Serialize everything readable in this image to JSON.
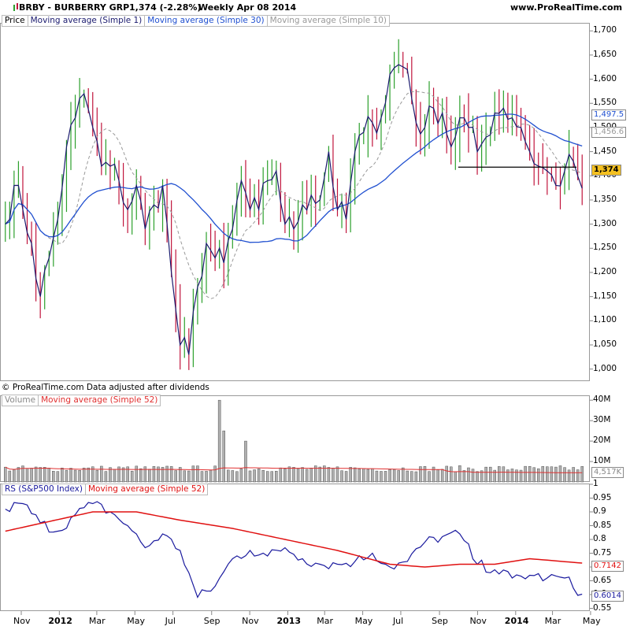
{
  "header": {
    "symbol": "BRBY - BURBERRY GRP",
    "last": "1,374 (-2.28%)",
    "period_date": "Weekly  Apr 08 2014",
    "site": "www.ProRealTime.com"
  },
  "legends": {
    "price": [
      "Price",
      "Moving average (Simple 1)",
      "Moving average (Simple 30)",
      "Moving average (Simple 10)"
    ],
    "volume": [
      "Volume",
      "Moving average (Simple 52)"
    ],
    "rs": [
      "RS (S&P500 Index)",
      "Moving average (Simple 52)"
    ]
  },
  "footnote": "© ProRealTime.com  Data adjusted after dividends",
  "colors": {
    "up": "#2ca02c",
    "down": "#c0143c",
    "close_line": "#1a1a6e",
    "ma30": "#2050d0",
    "ma10": "#999999",
    "vol_bar": "#9a9a9a",
    "vol_ma": "#e03030",
    "rs_line": "#1a1a9e",
    "rs_ma": "#e01010",
    "current": "#f4c020",
    "grid": "#e8e8e8"
  },
  "badges": {
    "current_price": "1,374",
    "ma30": "1,497.5",
    "ma10": "1,456.6",
    "vol_ma": "4,517K",
    "rs_ma": "0.7142",
    "rs": "0.6014"
  },
  "chart_data": [
    {
      "type": "candlestick",
      "title": "BRBY - BURBERRY GRP",
      "ylim": [
        975,
        1715
      ],
      "y_ticks": [
        "1,700",
        "1,650",
        "1,600",
        "1,550",
        "1,500",
        "1,450",
        "1,400",
        "1,350",
        "1,300",
        "1,250",
        "1,200",
        "1,150",
        "1,100",
        "1,050",
        "1,000"
      ],
      "x_labels": [
        "Nov",
        "2012",
        "Mar",
        "May",
        "Jul",
        "Sep",
        "Nov",
        "2013",
        "Mar",
        "May",
        "Jul",
        "Sep",
        "Nov",
        "2014",
        "Mar",
        "May"
      ],
      "x_label_dates": [
        "2011-11",
        "2012-01",
        "2012-03",
        "2012-05",
        "2012-07",
        "2012-09",
        "2012-11",
        "2013-01",
        "2013-03",
        "2013-05",
        "2013-07",
        "2013-09",
        "2013-11",
        "2014-01",
        "2014-03",
        "2014-05"
      ],
      "bold_x_labels": [
        "2012",
        "2013",
        "2014"
      ],
      "weeks": {
        "start": "2011-10-03",
        "count": 133
      },
      "anchors": {
        "weeks": [
          0,
          2,
          4,
          6,
          8,
          10,
          12,
          14,
          16,
          18,
          20,
          22,
          24,
          26,
          28,
          30,
          32,
          34,
          36,
          38,
          40,
          42,
          44,
          46,
          48,
          50,
          52,
          54,
          56,
          58,
          60,
          62,
          64,
          66,
          68,
          70,
          72,
          74,
          76,
          78,
          80,
          82,
          84,
          86,
          88,
          90,
          92,
          94,
          96,
          98,
          100,
          102,
          104,
          106,
          108,
          110,
          112,
          114,
          116,
          118,
          120,
          122,
          124,
          126,
          128,
          130,
          132
        ],
        "close": [
          1300,
          1380,
          1330,
          1260,
          1150,
          1230,
          1310,
          1460,
          1520,
          1570,
          1500,
          1420,
          1420,
          1390,
          1330,
          1380,
          1290,
          1340,
          1380,
          1200,
          1050,
          1030,
          1170,
          1260,
          1230,
          1220,
          1290,
          1390,
          1330,
          1330,
          1390,
          1410,
          1300,
          1290,
          1340,
          1360,
          1350,
          1450,
          1330,
          1310,
          1450,
          1490,
          1510,
          1520,
          1610,
          1630,
          1620,
          1510,
          1500,
          1540,
          1530,
          1460,
          1520,
          1500,
          1450,
          1480,
          1530,
          1540,
          1520,
          1500,
          1450,
          1420,
          1410,
          1380,
          1410,
          1430,
          1374
        ]
      },
      "ranges": {
        "low": 998,
        "high": 1688
      },
      "series": [
        {
          "name": "Moving average (Simple 30)",
          "last": 1497.5
        },
        {
          "name": "Moving average (Simple 10)",
          "last": 1456.6
        }
      ],
      "horizontal_line": {
        "value": 1418,
        "from": "2013-10",
        "to": "2014-04"
      },
      "last_close": 1374
    },
    {
      "type": "bar",
      "title": "Volume",
      "ylim": [
        0,
        42000000
      ],
      "y_ticks": [
        "40M",
        "30M",
        "20M",
        "10M"
      ],
      "notable_spikes": [
        {
          "week": "2012-09",
          "value": 40000000
        },
        {
          "week": "2012-09",
          "value": 25000000
        },
        {
          "week": "2012-10",
          "value": 20000000
        }
      ],
      "typical_range": [
        5000000,
        10000000
      ],
      "series": [
        {
          "name": "Moving average (Simple 52)",
          "last": 4517000
        }
      ]
    },
    {
      "type": "line",
      "title": "RS (S&P500 Index)",
      "ylim": [
        0.54,
        1.0
      ],
      "y_ticks": [
        "1",
        "0.95",
        "0.9",
        "0.85",
        "0.8",
        "0.75",
        "0.7",
        "0.65",
        "0.6",
        "0.55"
      ],
      "series": [
        {
          "name": "RS (S&P500 Index)",
          "weeks": [
            0,
            4,
            8,
            12,
            16,
            20,
            24,
            28,
            32,
            36,
            40,
            44,
            48,
            52,
            56,
            60,
            64,
            68,
            72,
            76,
            80,
            84,
            88,
            92,
            96,
            100,
            104,
            108,
            112,
            116,
            120,
            124,
            128,
            132
          ],
          "values": [
            0.91,
            0.93,
            0.86,
            0.83,
            0.89,
            0.93,
            0.9,
            0.85,
            0.77,
            0.82,
            0.76,
            0.59,
            0.63,
            0.73,
            0.76,
            0.74,
            0.77,
            0.73,
            0.71,
            0.71,
            0.72,
            0.75,
            0.7,
            0.72,
            0.79,
            0.81,
            0.82,
            0.71,
            0.69,
            0.66,
            0.67,
            0.66,
            0.66,
            0.6014
          ]
        },
        {
          "name": "Moving average (Simple 52)",
          "weeks": [
            0,
            20,
            30,
            40,
            52,
            64,
            76,
            88,
            96,
            104,
            112,
            120,
            132
          ],
          "values": [
            0.83,
            0.9,
            0.9,
            0.87,
            0.84,
            0.8,
            0.76,
            0.71,
            0.7,
            0.71,
            0.71,
            0.73,
            0.7142
          ]
        }
      ]
    }
  ]
}
